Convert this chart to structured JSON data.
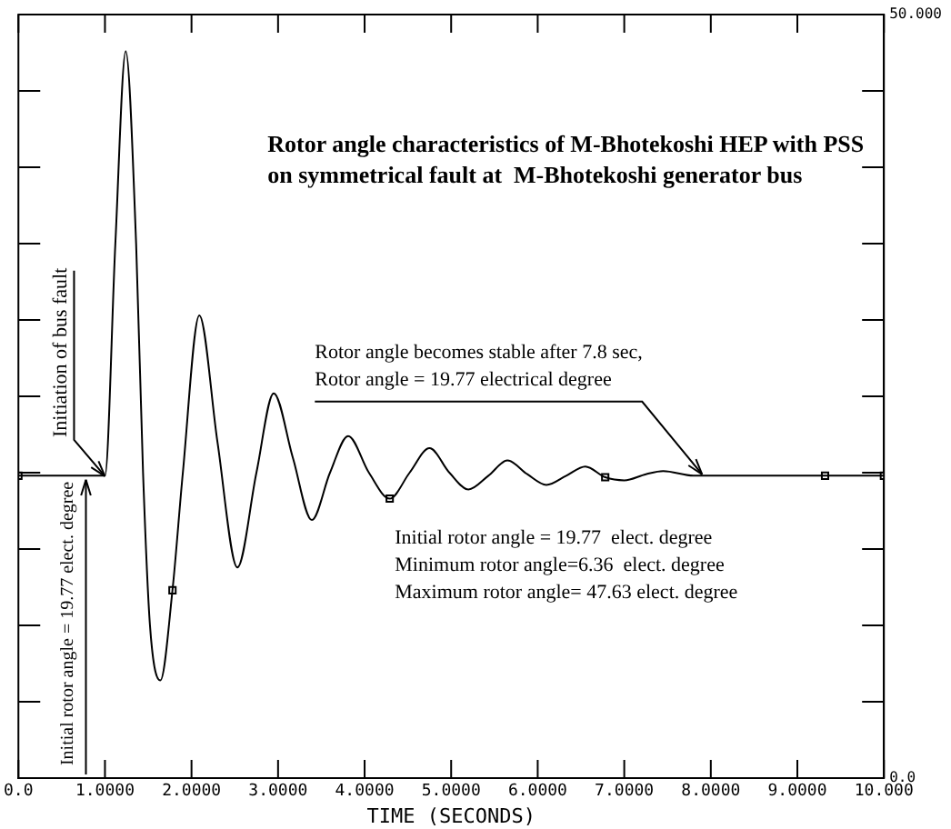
{
  "chart_data": {
    "type": "line",
    "title": "Rotor angle characteristics of M-Bhotekoshi HEP with PSS on symmetrical fault at  M-Bhotekoshi generator bus",
    "xlabel": "TIME (SECONDS)",
    "annotations": [
      {
        "text": "Initiation of bus fault",
        "x": 1.0,
        "y": 19.77
      },
      {
        "text": "Initial rotor angle = 19.77 elect. degree",
        "x": 0.78,
        "y": 19.77
      },
      {
        "text": "Rotor angle becomes stable after 7.8 sec,\nRotor angle = 19.77 electrical degree",
        "x": 7.9,
        "y": 19.77
      },
      "Initial rotor angle = 19.77  elect. degree",
      "Minimum rotor angle=6.36  elect. degree",
      "Maximum rotor angle= 47.63 elect. degree"
    ],
    "series": [
      {
        "color": "#000000",
        "marker": "none",
        "x": [
          0,
          1.0,
          1.12,
          1.24,
          1.36,
          1.44,
          1.52,
          1.64,
          1.78,
          1.9,
          2.09,
          2.3,
          2.53,
          2.75,
          2.95,
          3.17,
          3.39,
          3.6,
          3.81,
          4.05,
          4.29,
          4.52,
          4.75,
          4.98,
          5.2,
          5.43,
          5.65,
          5.88,
          6.1,
          6.33,
          6.55,
          6.78,
          7.0,
          7.25,
          7.45,
          7.8,
          10
        ],
        "values": [
          19.8,
          19.8,
          35,
          47.6,
          35,
          20,
          10,
          6.4,
          12.3,
          20,
          30.3,
          22,
          13.8,
          20,
          25.2,
          21,
          16.9,
          20,
          22.4,
          20,
          18.3,
          20,
          21.6,
          20,
          18.9,
          19.8,
          20.8,
          19.9,
          19.2,
          19.8,
          20.4,
          19.7,
          19.5,
          19.9,
          20.1,
          19.8,
          19.8
        ]
      },
      {
        "type": "scatter",
        "color": "#000000",
        "marker": "square",
        "x": [
          0,
          1.78,
          4.29,
          6.78,
          9.32,
          10
        ],
        "values": [
          19.8,
          12.3,
          18.3,
          19.7,
          19.8,
          19.8
        ]
      }
    ],
    "xlim": [
      0,
      10
    ],
    "xticks": [
      {
        "value": 0,
        "label": "0.0"
      },
      {
        "value": 1,
        "label": "1.0000"
      },
      {
        "value": 2,
        "label": "2.0000"
      },
      {
        "value": 3,
        "label": "3.0000"
      },
      {
        "value": 4,
        "label": "4.0000"
      },
      {
        "value": 5,
        "label": "5.0000"
      },
      {
        "value": 6,
        "label": "6.0000"
      },
      {
        "value": 7,
        "label": "7.0000"
      },
      {
        "value": 8,
        "label": "8.0000"
      },
      {
        "value": 9,
        "label": "9.0000"
      },
      {
        "value": 10,
        "label": "10.000"
      }
    ],
    "ylim": [
      0,
      50
    ],
    "yticks": [
      {
        "value": 0,
        "label": "0.0"
      },
      {
        "value": 5,
        "label": null
      },
      {
        "value": 10,
        "label": null
      },
      {
        "value": 15,
        "label": null
      },
      {
        "value": 20,
        "label": null
      },
      {
        "value": 25,
        "label": null
      },
      {
        "value": 30,
        "label": null
      },
      {
        "value": 35,
        "label": null
      },
      {
        "value": 40,
        "label": null
      },
      {
        "value": 45,
        "label": null
      },
      {
        "value": 50,
        "label": "50.000"
      }
    ],
    "grid": false,
    "legend": false
  }
}
